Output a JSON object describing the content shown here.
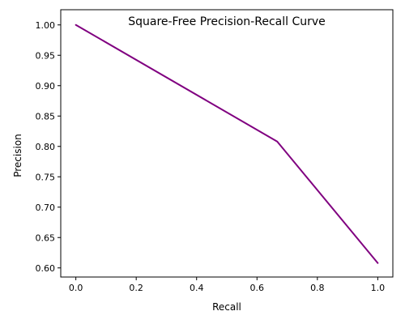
{
  "chart_data": {
    "type": "line",
    "title": "Square-Free Precision-Recall Curve",
    "xlabel": "Recall",
    "ylabel": "Precision",
    "xlim": [
      -0.05,
      1.05
    ],
    "ylim": [
      0.585,
      1.025
    ],
    "xticks": [
      0.0,
      0.2,
      0.4,
      0.6,
      0.8,
      1.0
    ],
    "xtick_labels": [
      "0.0",
      "0.2",
      "0.4",
      "0.6",
      "0.8",
      "1.0"
    ],
    "yticks": [
      0.6,
      0.65,
      0.7,
      0.75,
      0.8,
      0.85,
      0.9,
      0.95,
      1.0
    ],
    "ytick_labels": [
      "0.60",
      "0.65",
      "0.70",
      "0.75",
      "0.80",
      "0.85",
      "0.90",
      "0.95",
      "1.00"
    ],
    "grid": false,
    "series": [
      {
        "color": "#800080",
        "x": [
          0.0,
          0.667,
          1.0
        ],
        "y": [
          1.0,
          0.808,
          0.608
        ]
      }
    ]
  }
}
